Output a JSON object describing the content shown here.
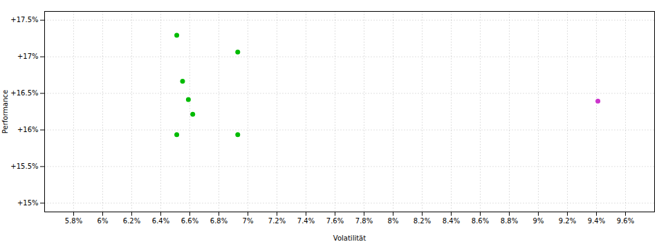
{
  "chart_data": {
    "type": "scatter",
    "xlabel": "Volatilität",
    "ylabel": "Performance",
    "series": [
      {
        "color": "#00bb00",
        "x": [
          0.0651,
          0.0693,
          0.0655,
          0.0659,
          0.0662,
          0.0651,
          0.0693
        ],
        "y": [
          0.17295,
          0.17065,
          0.16665,
          0.16415,
          0.16215,
          0.15935,
          0.15935
        ]
      },
      {
        "color": "#cc33cc",
        "x": [
          0.0941
        ],
        "y": [
          0.16395
        ]
      }
    ],
    "xlim": [
      0.056,
      0.098
    ],
    "xticks": [
      {
        "value": 0.058,
        "label": "5.8%"
      },
      {
        "value": 0.06,
        "label": "6%"
      },
      {
        "value": 0.062,
        "label": "6.2%"
      },
      {
        "value": 0.064,
        "label": "6.4%"
      },
      {
        "value": 0.066,
        "label": "6.6%"
      },
      {
        "value": 0.068,
        "label": "6.8%"
      },
      {
        "value": 0.07,
        "label": "7%"
      },
      {
        "value": 0.072,
        "label": "7.2%"
      },
      {
        "value": 0.074,
        "label": "7.4%"
      },
      {
        "value": 0.076,
        "label": "7.6%"
      },
      {
        "value": 0.078,
        "label": "7.8%"
      },
      {
        "value": 0.08,
        "label": "8%"
      },
      {
        "value": 0.082,
        "label": "8.2%"
      },
      {
        "value": 0.084,
        "label": "8.4%"
      },
      {
        "value": 0.086,
        "label": "8.6%"
      },
      {
        "value": 0.088,
        "label": "8.8%"
      },
      {
        "value": 0.09,
        "label": "9%"
      },
      {
        "value": 0.092,
        "label": "9.2%"
      },
      {
        "value": 0.094,
        "label": "9.4%"
      },
      {
        "value": 0.096,
        "label": "9.6%"
      }
    ],
    "ylim": [
      0.1488,
      0.1762
    ],
    "yticks": [
      {
        "value": 0.15,
        "label": "+15%"
      },
      {
        "value": 0.155,
        "label": "+15.5%"
      },
      {
        "value": 0.16,
        "label": "+16%"
      },
      {
        "value": 0.165,
        "label": "+16.5%"
      },
      {
        "value": 0.17,
        "label": "+17%"
      },
      {
        "value": 0.175,
        "label": "+17.5%"
      }
    ],
    "grid": true
  }
}
